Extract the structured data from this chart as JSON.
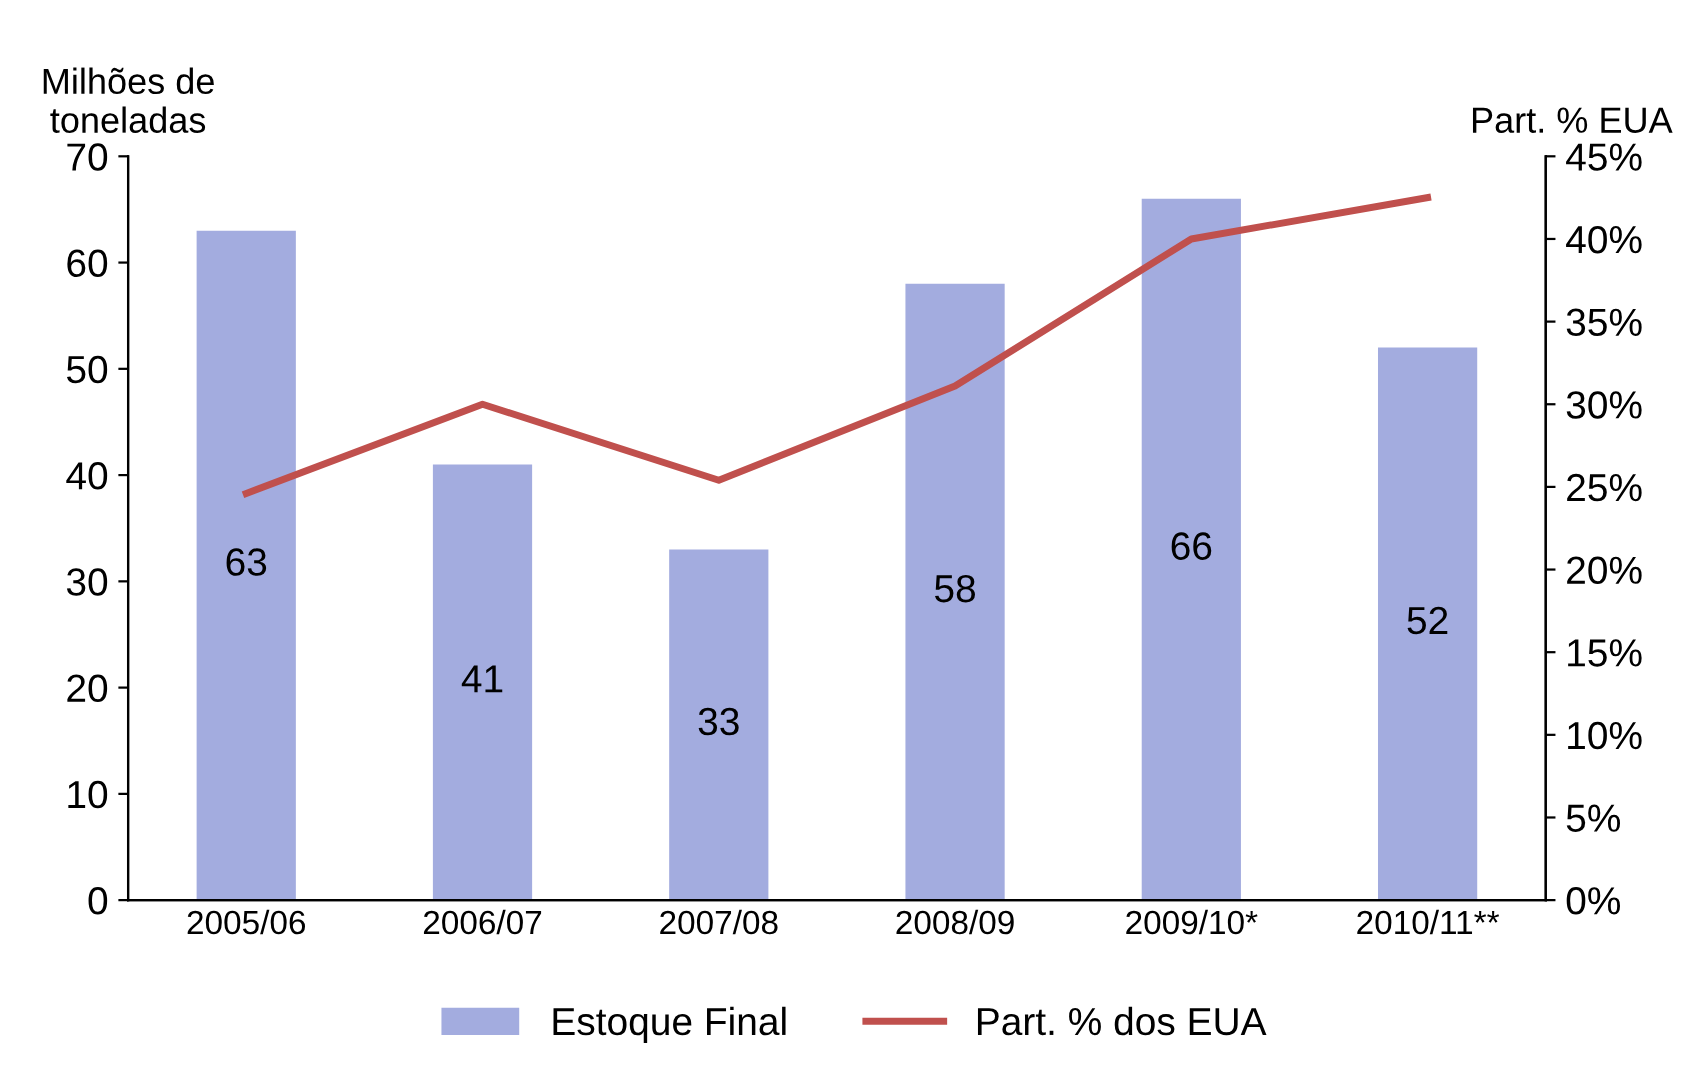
{
  "chart_data": {
    "type": "bar",
    "ylabel": "Milhões de\ntoneladas",
    "y2label": "Part. % EUA",
    "categories": [
      "2005/06",
      "2006/07",
      "2007/08",
      "2008/09",
      "2009/10*",
      "2010/11**"
    ],
    "series": [
      {
        "name": "Estoque Final",
        "color": "#a3acdf",
        "values": [
          63,
          41,
          33,
          58,
          66,
          52
        ],
        "value_labels": [
          "63",
          "41",
          "33",
          "58",
          "66",
          "52"
        ]
      },
      {
        "name": "Part. % dos EUA",
        "type": "line",
        "axis": "y2",
        "color": "#c0504d",
        "values": [
          24.6,
          30.0,
          25.4,
          31.1,
          40.0,
          42.5
        ]
      }
    ],
    "ylim": [
      0,
      70
    ],
    "yticks": [
      0,
      10,
      20,
      30,
      40,
      50,
      60,
      70
    ],
    "y2lim": [
      0,
      45
    ],
    "y2ticks": [
      {
        "value": 0,
        "label": "0%"
      },
      {
        "value": 5,
        "label": "5%"
      },
      {
        "value": 10,
        "label": "10%"
      },
      {
        "value": 15,
        "label": "15%"
      },
      {
        "value": 20,
        "label": "20%"
      },
      {
        "value": 25,
        "label": "25%"
      },
      {
        "value": 30,
        "label": "30%"
      },
      {
        "value": 35,
        "label": "35%"
      },
      {
        "value": 40,
        "label": "40%"
      },
      {
        "value": 45,
        "label": "45%"
      }
    ],
    "grid": false,
    "legend": "bottom",
    "marker": "none",
    "line_style": "solid"
  }
}
